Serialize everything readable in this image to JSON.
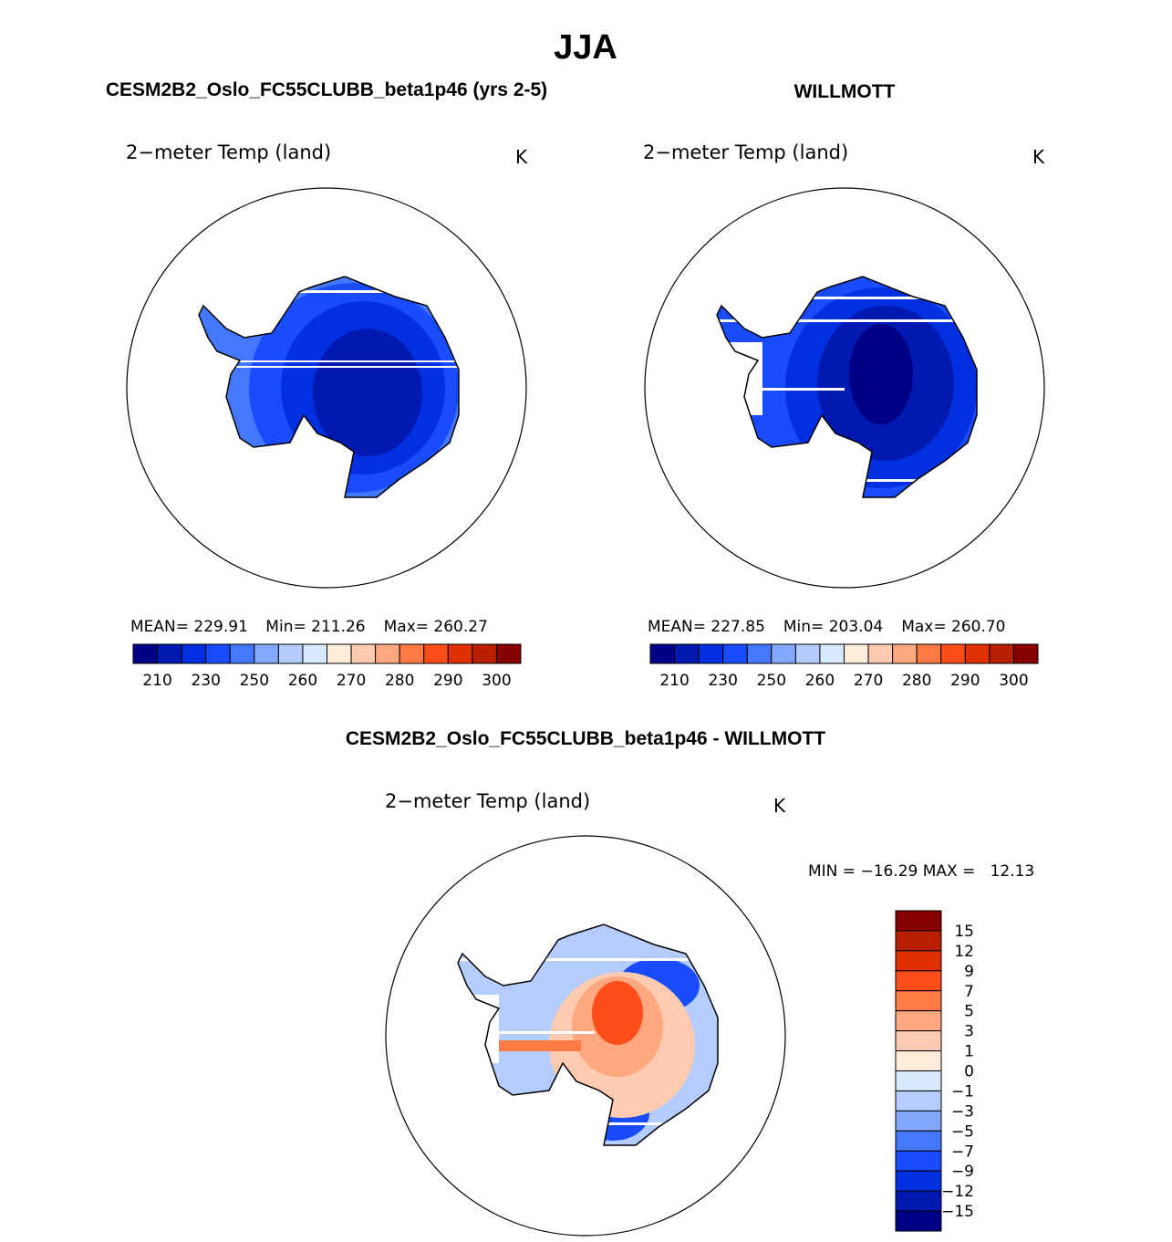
{
  "title": "JJA",
  "chart_data": [
    {
      "type": "heatmap",
      "panel_title": "CESM2B2_Oslo_FC55CLUBB_beta1p46 (yrs 2-5)",
      "variable": "2−meter Temp (land)",
      "units": "K",
      "stats": {
        "mean_label": "MEAN=",
        "mean": "229.91",
        "min_label": "Min=",
        "min": "211.26",
        "max_label": "Max=",
        "max": "260.27"
      },
      "colorbar_labels": [
        "210",
        "230",
        "250",
        "260",
        "270",
        "280",
        "290",
        "300"
      ]
    },
    {
      "type": "heatmap",
      "panel_title": "WILLMOTT",
      "variable": "2−meter Temp (land)",
      "units": "K",
      "stats": {
        "mean_label": "MEAN=",
        "mean": "227.85",
        "min_label": "Min=",
        "min": "203.04",
        "max_label": "Max=",
        "max": "260.70"
      },
      "colorbar_labels": [
        "210",
        "230",
        "250",
        "260",
        "270",
        "280",
        "290",
        "300"
      ]
    },
    {
      "type": "heatmap",
      "panel_title": "CESM2B2_Oslo_FC55CLUBB_beta1p46 - WILLMOTT",
      "variable": "2−meter Temp (land)",
      "units": "K",
      "stats_text": "MIN = −16.29 MAX =   12.13",
      "colorbar_labels": [
        "15",
        "12",
        "9",
        "7",
        "5",
        "3",
        "1",
        "0",
        "−1",
        "−3",
        "−5",
        "−7",
        "−9",
        "−12",
        "−15"
      ]
    }
  ],
  "colors": [
    "#000087",
    "#0019b0",
    "#0030e0",
    "#1a4cff",
    "#4479ff",
    "#85a8ff",
    "#b5ccff",
    "#d8eaff",
    "#ffecdb",
    "#ffcbb0",
    "#ffa880",
    "#ff7a45",
    "#ff4d1a",
    "#e03000",
    "#b82000",
    "#870000"
  ]
}
